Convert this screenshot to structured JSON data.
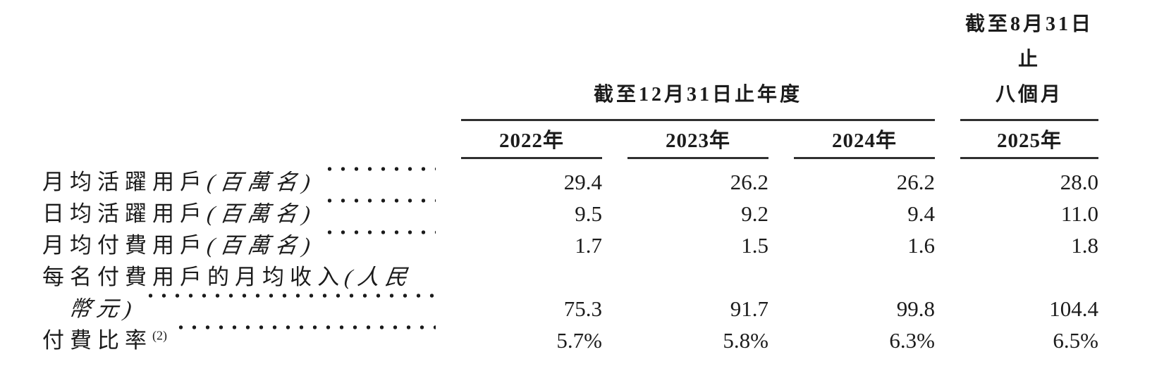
{
  "table": {
    "header": {
      "group_annual": "截至12月31日止年度",
      "group_interim_line1": "截至8月31日止",
      "group_interim_line2": "八個月",
      "years": [
        "2022年",
        "2023年",
        "2024年",
        "2025年"
      ]
    },
    "rows": [
      {
        "label": "月均活躍用戶",
        "unit": "(百萬名)",
        "values": [
          "29.4",
          "26.2",
          "26.2",
          "28.0"
        ]
      },
      {
        "label": "日均活躍用戶",
        "unit": "(百萬名)",
        "values": [
          "9.5",
          "9.2",
          "9.4",
          "11.0"
        ]
      },
      {
        "label": "月均付費用戶",
        "unit": "(百萬名)",
        "values": [
          "1.7",
          "1.5",
          "1.6",
          "1.8"
        ]
      },
      {
        "label": "每名付費用戶的月均收入",
        "unit_line1": "(人民",
        "unit_line2": "幣元)",
        "values": [
          "75.3",
          "91.7",
          "99.8",
          "104.4"
        ]
      },
      {
        "label": "付費比率",
        "footnote_ref": "(2)",
        "values": [
          "5.7%",
          "5.8%",
          "6.3%",
          "6.5%"
        ]
      }
    ]
  },
  "colors": {
    "text": "#1b1b1b",
    "rule": "#2f2f2f",
    "background": "#ffffff"
  }
}
